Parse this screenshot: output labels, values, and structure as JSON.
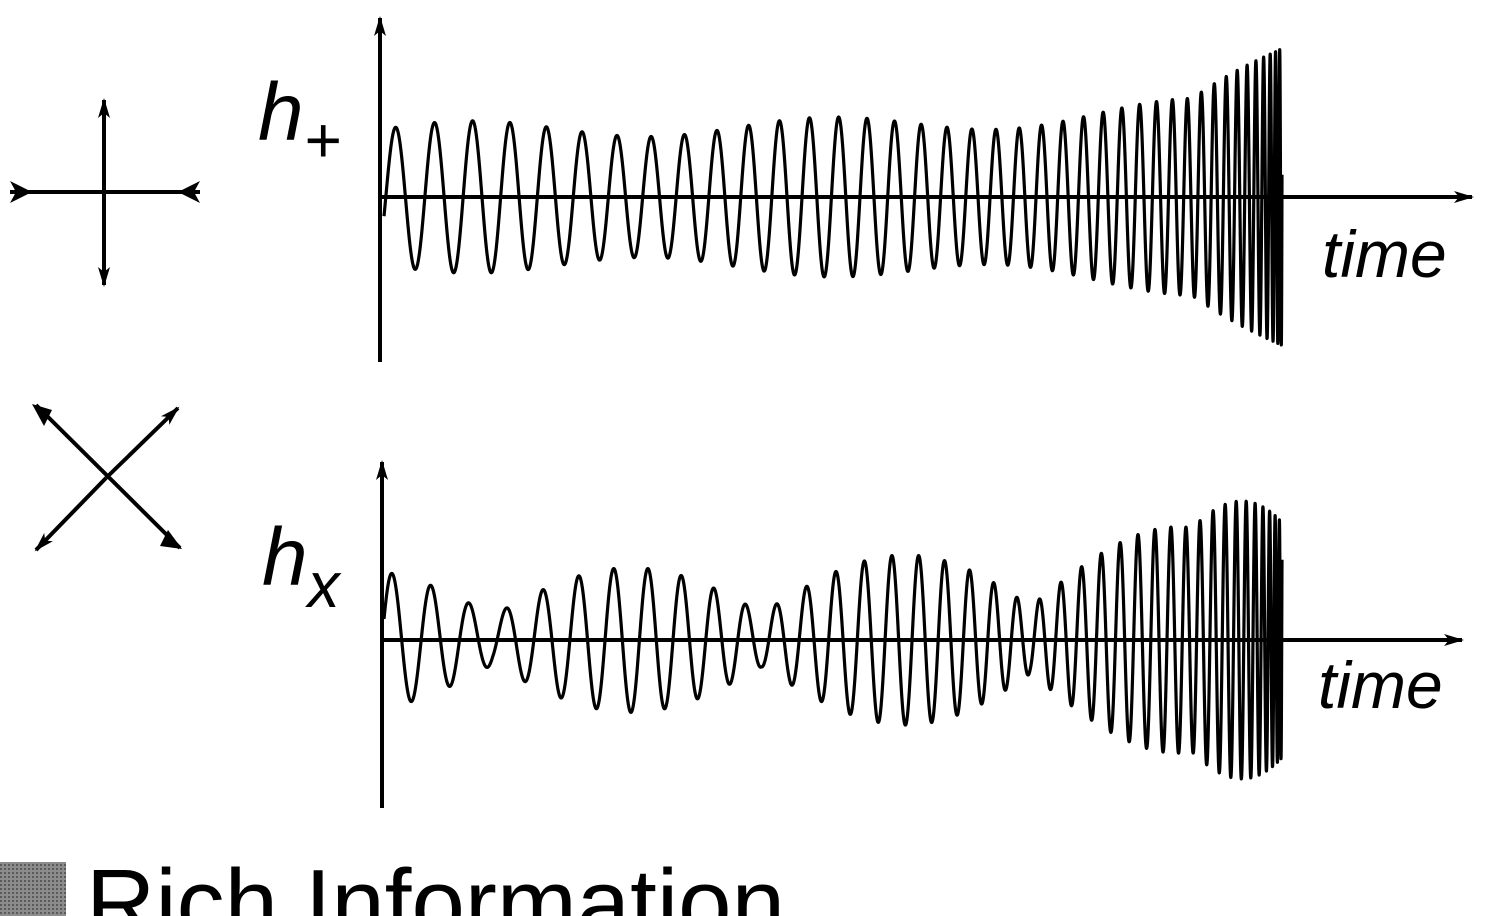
{
  "panels": [
    {
      "id": "plus",
      "polarization_label": "h",
      "polarization_subscript": "+",
      "time_label": "time",
      "icon": "plus-polarization-icon",
      "envelope": "slowly modulated amplitude growing into a chirp burst"
    },
    {
      "id": "cross",
      "polarization_label": "h",
      "polarization_subscript": "x",
      "time_label": "time",
      "icon": "cross-polarization-icon",
      "envelope": "strongly beating amplitude growing into a chirp burst"
    }
  ],
  "footer": {
    "bullet_text": "Rich Information"
  },
  "colors": {
    "ink": "#000000",
    "bullet": "#7a7a7a",
    "background": "#ffffff"
  }
}
